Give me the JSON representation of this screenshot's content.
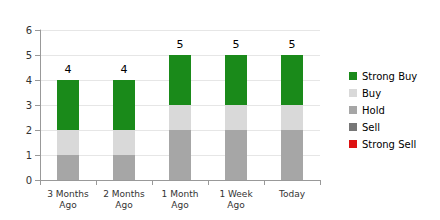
{
  "chart_data": {
    "type": "bar",
    "stacked": true,
    "categories": [
      "3 Months Ago",
      "2 Months Ago",
      "1 Month Ago",
      "1 Week Ago",
      "Today"
    ],
    "series": [
      {
        "name": "Strong Buy",
        "color": "#1a8a1a",
        "values": [
          2,
          2,
          2,
          2,
          2
        ]
      },
      {
        "name": "Buy",
        "color": "#d9d9d9",
        "values": [
          1,
          1,
          1,
          1,
          1
        ]
      },
      {
        "name": "Hold",
        "color": "#a6a6a6",
        "values": [
          1,
          1,
          2,
          2,
          2
        ]
      },
      {
        "name": "Sell",
        "color": "#777777",
        "values": [
          0,
          0,
          0,
          0,
          0
        ]
      },
      {
        "name": "Strong Sell",
        "color": "#dd1111",
        "values": [
          0,
          0,
          0,
          0,
          0
        ]
      }
    ],
    "totals": [
      4,
      4,
      5,
      5,
      5
    ],
    "ylim": [
      0,
      6
    ],
    "yticks": [
      0,
      1,
      2,
      3,
      4,
      5,
      6
    ],
    "grid": true,
    "legend": "right"
  }
}
